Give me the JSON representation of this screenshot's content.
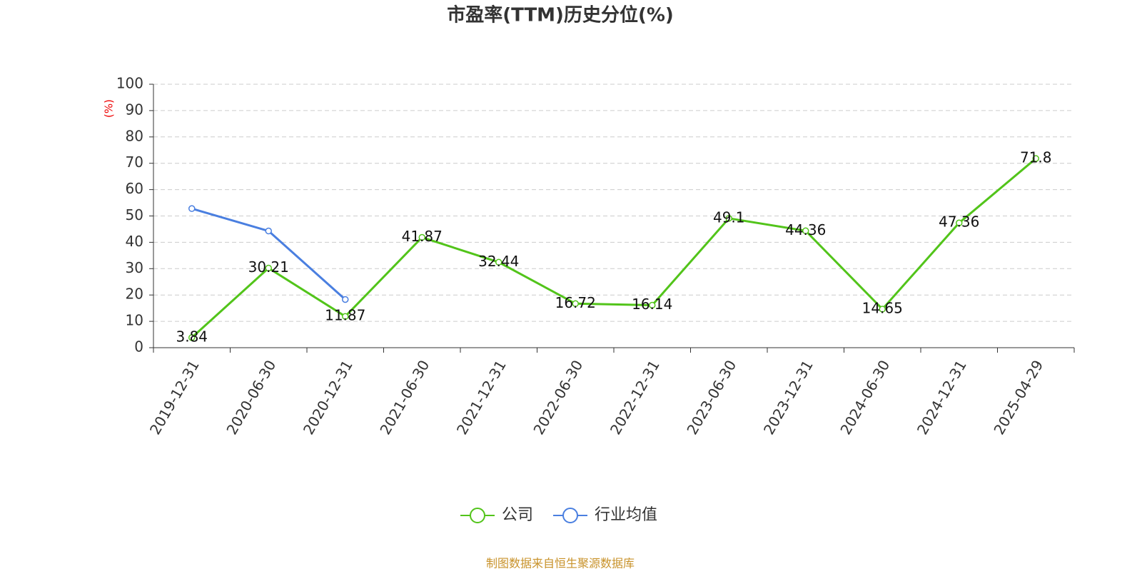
{
  "chart_data": {
    "type": "line",
    "title": "市盈率(TTM)历史分位(%)",
    "y_label": "(%)",
    "source": "制图数据来自恒生聚源数据库",
    "categories": [
      "2019-12-31",
      "2020-06-30",
      "2020-12-31",
      "2021-06-30",
      "2021-12-31",
      "2022-06-30",
      "2022-12-31",
      "2023-06-30",
      "2023-12-31",
      "2024-06-30",
      "2024-12-31",
      "2025-04-29"
    ],
    "series": [
      {
        "name": "公司",
        "color": "#52c41a",
        "values": [
          3.84,
          30.21,
          11.87,
          41.87,
          32.44,
          16.72,
          16.14,
          49.1,
          44.36,
          14.65,
          47.36,
          71.8
        ]
      },
      {
        "name": "行业均值",
        "color": "#4a7fe0",
        "values": [
          52.8,
          44.3,
          18.3,
          null,
          null,
          null,
          null,
          null,
          null,
          null,
          null,
          null
        ]
      }
    ],
    "ylim": [
      0,
      100
    ],
    "yticks": [
      0,
      10,
      20,
      30,
      40,
      50,
      60,
      70,
      80,
      90,
      100
    ],
    "grid": true
  }
}
